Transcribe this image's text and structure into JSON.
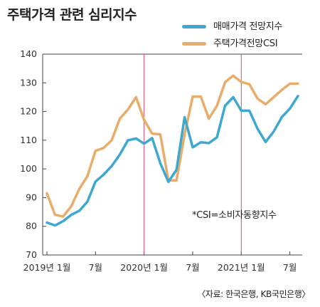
{
  "chart_data": {
    "type": "line",
    "title": "주택가격 관련 심리지수",
    "note": "*CSI=소비자동향지수",
    "source": "〈자료: 한국은행, KB국민은행〉",
    "ylim": [
      70,
      140
    ],
    "yticks": [
      "70",
      "80",
      "90",
      "100",
      "110",
      "120",
      "130",
      "140"
    ],
    "ytick_values": [
      70,
      80,
      90,
      100,
      110,
      120,
      130,
      140
    ],
    "x": [
      "2019-01",
      "2019-02",
      "2019-03",
      "2019-04",
      "2019-05",
      "2019-06",
      "2019-07",
      "2019-08",
      "2019-09",
      "2019-10",
      "2019-11",
      "2019-12",
      "2020-01",
      "2020-02",
      "2020-03",
      "2020-04",
      "2020-05",
      "2020-06",
      "2020-07",
      "2020-08",
      "2020-09",
      "2020-10",
      "2020-11",
      "2020-12",
      "2021-01",
      "2021-02",
      "2021-03",
      "2021-04",
      "2021-05",
      "2021-06",
      "2021-07",
      "2021-08"
    ],
    "xticks": [
      {
        "label": "2019년 1월",
        "x": "2019-01"
      },
      {
        "label": "7월",
        "x": "2019-07"
      },
      {
        "label": "2020년 1월",
        "x": "2020-01"
      },
      {
        "label": "7월",
        "x": "2020-07"
      },
      {
        "label": "2021년 1월",
        "x": "2021-01"
      },
      {
        "label": "7월",
        "x": "2021-07"
      }
    ],
    "vlines": [
      "2020-01",
      "2021-01"
    ],
    "grid": false,
    "legend_position": "top-right",
    "series": [
      {
        "name": "매매가격 전망지수",
        "color": "#3ea8cf",
        "values": [
          81.3,
          80.3,
          81.8,
          84.0,
          85.4,
          88.6,
          95.6,
          98.0,
          101.0,
          105.0,
          110.0,
          110.6,
          108.8,
          110.7,
          102.0,
          95.5,
          99.7,
          118.0,
          107.5,
          109.3,
          109.0,
          111.0,
          122.0,
          125.0,
          120.3,
          120.3,
          114.0,
          109.4,
          113.0,
          118.0,
          121.0,
          125.4
        ]
      },
      {
        "name": "주택가격전망CSI",
        "color": "#e8ad6a",
        "values": [
          91.5,
          84.0,
          83.4,
          87.0,
          93.0,
          97.5,
          106.3,
          107.3,
          110.0,
          117.5,
          120.7,
          125.0,
          117.1,
          112.3,
          112.0,
          96.0,
          96.0,
          112.0,
          125.2,
          125.2,
          117.5,
          122.0,
          130.2,
          132.5,
          130.3,
          129.5,
          124.5,
          122.5,
          125.0,
          127.5,
          129.7,
          129.7
        ]
      }
    ]
  }
}
